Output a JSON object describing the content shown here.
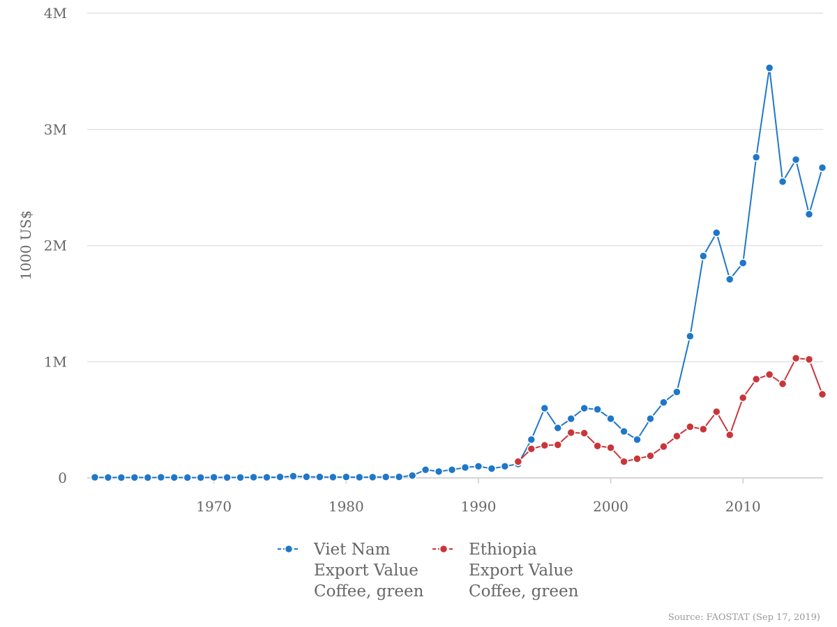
{
  "chart_data": {
    "type": "line",
    "ylabel": "1000 US$",
    "xlabel": "",
    "ylim": [
      0,
      4000000
    ],
    "y_ticks": [
      0,
      1000000,
      2000000,
      3000000,
      4000000
    ],
    "y_tick_labels": [
      "0",
      "1M",
      "2M",
      "3M",
      "4M"
    ],
    "x_ticks": [
      1970,
      1980,
      1990,
      2000,
      2010
    ],
    "x_tick_labels": [
      "1970",
      "1980",
      "1990",
      "2000",
      "2010"
    ],
    "xlim": [
      1961,
      2016
    ],
    "grid": true,
    "legend_position": "bottom",
    "source": "Source: FAOSTAT (Sep 17, 2019)",
    "series": [
      {
        "name": "Viet Nam",
        "legend_lines": [
          "Viet Nam",
          "Export Value",
          "Coffee, green"
        ],
        "color": "#1f77c9",
        "x": [
          1961,
          1962,
          1963,
          1964,
          1965,
          1966,
          1967,
          1968,
          1969,
          1970,
          1971,
          1972,
          1973,
          1974,
          1975,
          1976,
          1977,
          1978,
          1979,
          1980,
          1981,
          1982,
          1983,
          1984,
          1985,
          1986,
          1987,
          1988,
          1989,
          1990,
          1991,
          1992,
          1993,
          1994,
          1995,
          1996,
          1997,
          1998,
          1999,
          2000,
          2001,
          2002,
          2003,
          2004,
          2005,
          2006,
          2007,
          2008,
          2009,
          2010,
          2011,
          2012,
          2013,
          2014,
          2015,
          2016
        ],
        "values": [
          5000,
          4000,
          3000,
          4000,
          3000,
          5000,
          4000,
          3000,
          3000,
          5000,
          4000,
          4000,
          6000,
          5000,
          8000,
          15000,
          10000,
          8000,
          7000,
          8000,
          6000,
          7000,
          8000,
          9000,
          20000,
          70000,
          55000,
          70000,
          90000,
          100000,
          80000,
          100000,
          120000,
          330000,
          600000,
          430000,
          510000,
          600000,
          590000,
          510000,
          400000,
          330000,
          510000,
          650000,
          740000,
          1220000,
          1910000,
          2110000,
          1710000,
          1850000,
          2760000,
          3530000,
          2550000,
          2740000,
          2270000,
          2670000
        ]
      },
      {
        "name": "Ethiopia",
        "legend_lines": [
          "Ethiopia",
          "Export Value",
          "Coffee, green"
        ],
        "color": "#c9363a",
        "x": [
          1993,
          1994,
          1995,
          1996,
          1997,
          1998,
          1999,
          2000,
          2001,
          2002,
          2003,
          2004,
          2005,
          2006,
          2007,
          2008,
          2009,
          2010,
          2011,
          2012,
          2013,
          2014,
          2015,
          2016
        ],
        "values": [
          140000,
          250000,
          280000,
          285000,
          390000,
          385000,
          275000,
          260000,
          140000,
          165000,
          190000,
          270000,
          360000,
          440000,
          420000,
          570000,
          370000,
          690000,
          850000,
          890000,
          810000,
          1030000,
          1020000,
          720000
        ]
      }
    ]
  }
}
